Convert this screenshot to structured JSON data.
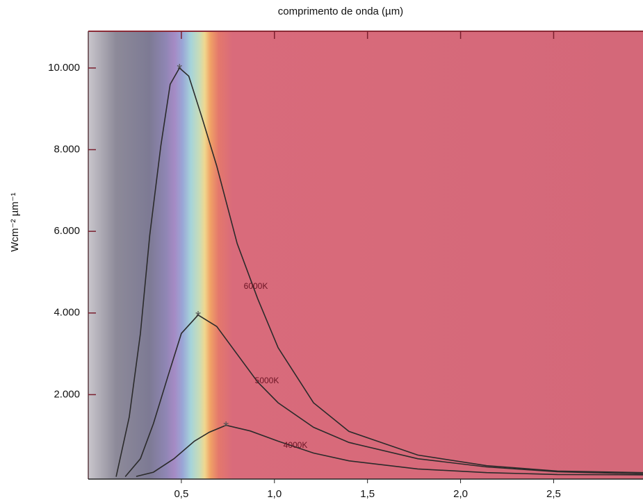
{
  "chart_data": {
    "type": "line",
    "xlabel": "comprimento de onda (µm)",
    "ylabel": "Wcm⁻² µm⁻¹",
    "xlim": [
      0,
      2.98
    ],
    "ylim": [
      0,
      10900
    ],
    "xticks": [
      {
        "value": 0.5,
        "label": "0,5"
      },
      {
        "value": 1.0,
        "label": "1,0"
      },
      {
        "value": 1.5,
        "label": "1,5"
      },
      {
        "value": 2.0,
        "label": "2,0"
      },
      {
        "value": 2.5,
        "label": "2,5"
      }
    ],
    "yticks": [
      {
        "value": 2000,
        "label": "2.000"
      },
      {
        "value": 4000,
        "label": "4.000"
      },
      {
        "value": 6000,
        "label": "6.000"
      },
      {
        "value": 8000,
        "label": "8.000"
      },
      {
        "value": 10000,
        "label": "10.000"
      }
    ],
    "marker": "*",
    "series": [
      {
        "name": "6000K",
        "color": "#2a2a2a",
        "x": [
          0.15,
          0.22,
          0.28,
          0.33,
          0.39,
          0.44,
          0.49,
          0.54,
          0.61,
          0.69,
          0.8,
          0.91,
          1.02,
          1.21,
          1.4,
          1.77,
          2.14,
          2.52,
          2.98
        ],
        "values": [
          0,
          1450,
          3500,
          5900,
          8100,
          9600,
          10000,
          9800,
          8800,
          7600,
          5700,
          4350,
          3150,
          1800,
          1100,
          520,
          260,
          130,
          90
        ]
      },
      {
        "name": "5000K",
        "color": "#2a2a2a",
        "x": [
          0.2,
          0.28,
          0.35,
          0.43,
          0.5,
          0.59,
          0.69,
          0.8,
          0.91,
          1.02,
          1.21,
          1.4,
          1.77,
          2.14,
          2.52,
          2.98
        ],
        "values": [
          0,
          430,
          1290,
          2480,
          3500,
          3950,
          3670,
          2990,
          2310,
          1800,
          1200,
          830,
          430,
          230,
          110,
          60
        ]
      },
      {
        "name": "4000K",
        "color": "#2a2a2a",
        "x": [
          0.26,
          0.35,
          0.46,
          0.57,
          0.65,
          0.74,
          0.87,
          1.02,
          1.21,
          1.4,
          1.77,
          2.14,
          2.52,
          2.98
        ],
        "values": [
          0,
          100,
          430,
          860,
          1080,
          1250,
          1110,
          860,
          570,
          380,
          180,
          90,
          45,
          35
        ]
      }
    ]
  }
}
